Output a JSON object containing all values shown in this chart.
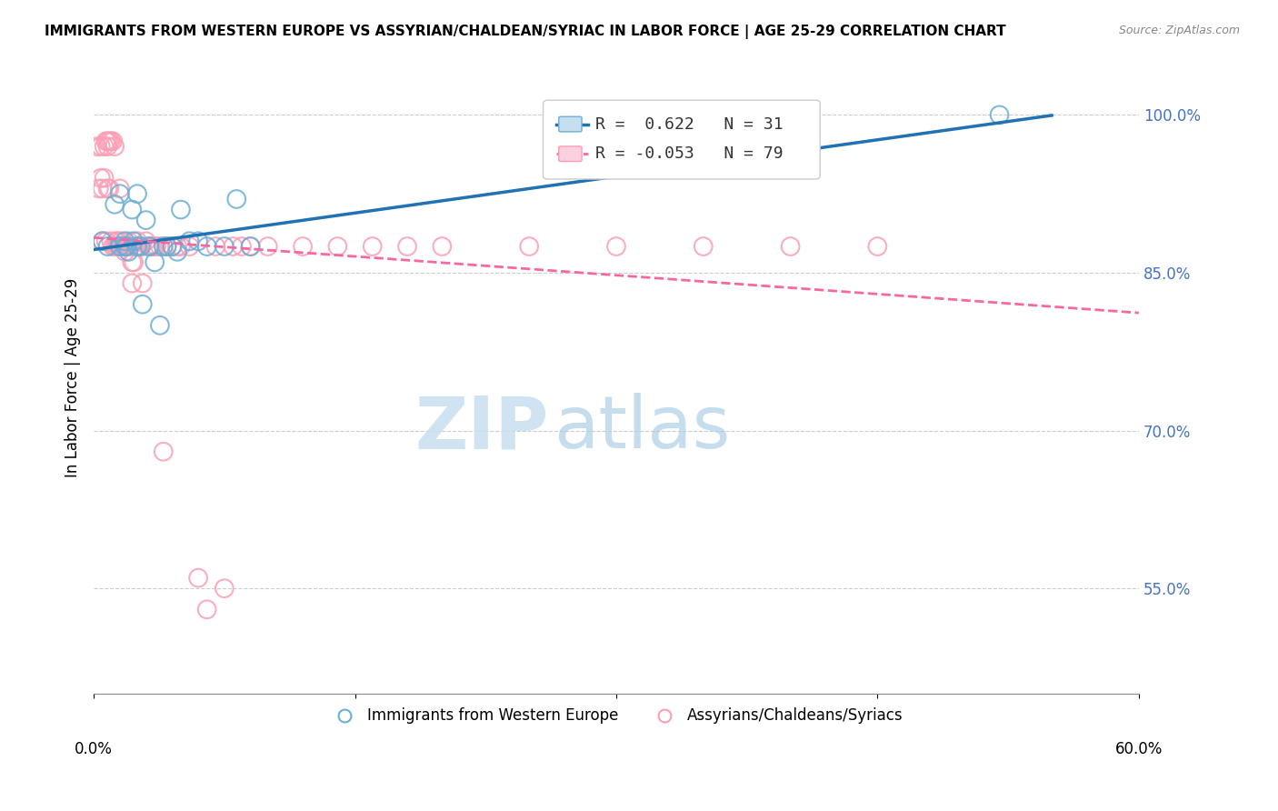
{
  "title": "IMMIGRANTS FROM WESTERN EUROPE VS ASSYRIAN/CHALDEAN/SYRIAC IN LABOR FORCE | AGE 25-29 CORRELATION CHART",
  "source": "Source: ZipAtlas.com",
  "ylabel": "In Labor Force | Age 25-29",
  "yaxis_labels": [
    "55.0%",
    "70.0%",
    "85.0%",
    "100.0%"
  ],
  "yaxis_values": [
    0.55,
    0.7,
    0.85,
    1.0
  ],
  "legend1_label": "Immigrants from Western Europe",
  "legend2_label": "Assyrians/Chaldeans/Syriacs",
  "R_blue": 0.622,
  "N_blue": 31,
  "R_pink": -0.053,
  "N_pink": 79,
  "blue_color": "#6baed6",
  "pink_color": "#fa9fb5",
  "blue_line_color": "#2171b5",
  "pink_line_color": "#f768a1",
  "watermark_zip": "ZIP",
  "watermark_atlas": "atlas",
  "blue_scatter_x": [
    0.005,
    0.008,
    0.012,
    0.015,
    0.015,
    0.018,
    0.018,
    0.019,
    0.02,
    0.022,
    0.023,
    0.025,
    0.025,
    0.027,
    0.028,
    0.03,
    0.032,
    0.035,
    0.038,
    0.04,
    0.042,
    0.045,
    0.048,
    0.05,
    0.055,
    0.06,
    0.065,
    0.075,
    0.082,
    0.09,
    0.52
  ],
  "blue_scatter_y": [
    0.88,
    0.875,
    0.915,
    0.875,
    0.925,
    0.875,
    0.88,
    0.875,
    0.87,
    0.91,
    0.88,
    0.875,
    0.925,
    0.875,
    0.82,
    0.9,
    0.875,
    0.86,
    0.8,
    0.875,
    0.875,
    0.875,
    0.87,
    0.91,
    0.88,
    0.88,
    0.875,
    0.875,
    0.92,
    0.875,
    1.0
  ],
  "pink_scatter_x": [
    0.002,
    0.003,
    0.004,
    0.004,
    0.005,
    0.005,
    0.006,
    0.006,
    0.007,
    0.007,
    0.008,
    0.008,
    0.008,
    0.009,
    0.009,
    0.01,
    0.01,
    0.011,
    0.011,
    0.012,
    0.012,
    0.013,
    0.013,
    0.014,
    0.014,
    0.015,
    0.015,
    0.016,
    0.016,
    0.017,
    0.017,
    0.018,
    0.018,
    0.019,
    0.019,
    0.02,
    0.02,
    0.021,
    0.022,
    0.022,
    0.023,
    0.024,
    0.025,
    0.025,
    0.026,
    0.027,
    0.028,
    0.03,
    0.031,
    0.032,
    0.033,
    0.034,
    0.035,
    0.036,
    0.038,
    0.04,
    0.042,
    0.045,
    0.048,
    0.05,
    0.055,
    0.06,
    0.065,
    0.07,
    0.075,
    0.08,
    0.085,
    0.09,
    0.1,
    0.12,
    0.14,
    0.16,
    0.18,
    0.2,
    0.25,
    0.3,
    0.35,
    0.4,
    0.45
  ],
  "pink_scatter_y": [
    0.97,
    0.93,
    0.97,
    0.94,
    0.93,
    0.88,
    0.97,
    0.94,
    0.975,
    0.88,
    0.975,
    0.97,
    0.93,
    0.975,
    0.93,
    0.975,
    0.88,
    0.975,
    0.875,
    0.875,
    0.97,
    0.875,
    0.88,
    0.875,
    0.88,
    0.875,
    0.93,
    0.875,
    0.88,
    0.875,
    0.875,
    0.875,
    0.87,
    0.875,
    0.875,
    0.875,
    0.88,
    0.875,
    0.86,
    0.84,
    0.86,
    0.875,
    0.875,
    0.88,
    0.875,
    0.875,
    0.84,
    0.88,
    0.875,
    0.875,
    0.875,
    0.875,
    0.875,
    0.875,
    0.875,
    0.68,
    0.875,
    0.875,
    0.875,
    0.875,
    0.875,
    0.56,
    0.53,
    0.875,
    0.55,
    0.875,
    0.875,
    0.875,
    0.875,
    0.875,
    0.875,
    0.875,
    0.875,
    0.875,
    0.875,
    0.875,
    0.875,
    0.875,
    0.875
  ]
}
